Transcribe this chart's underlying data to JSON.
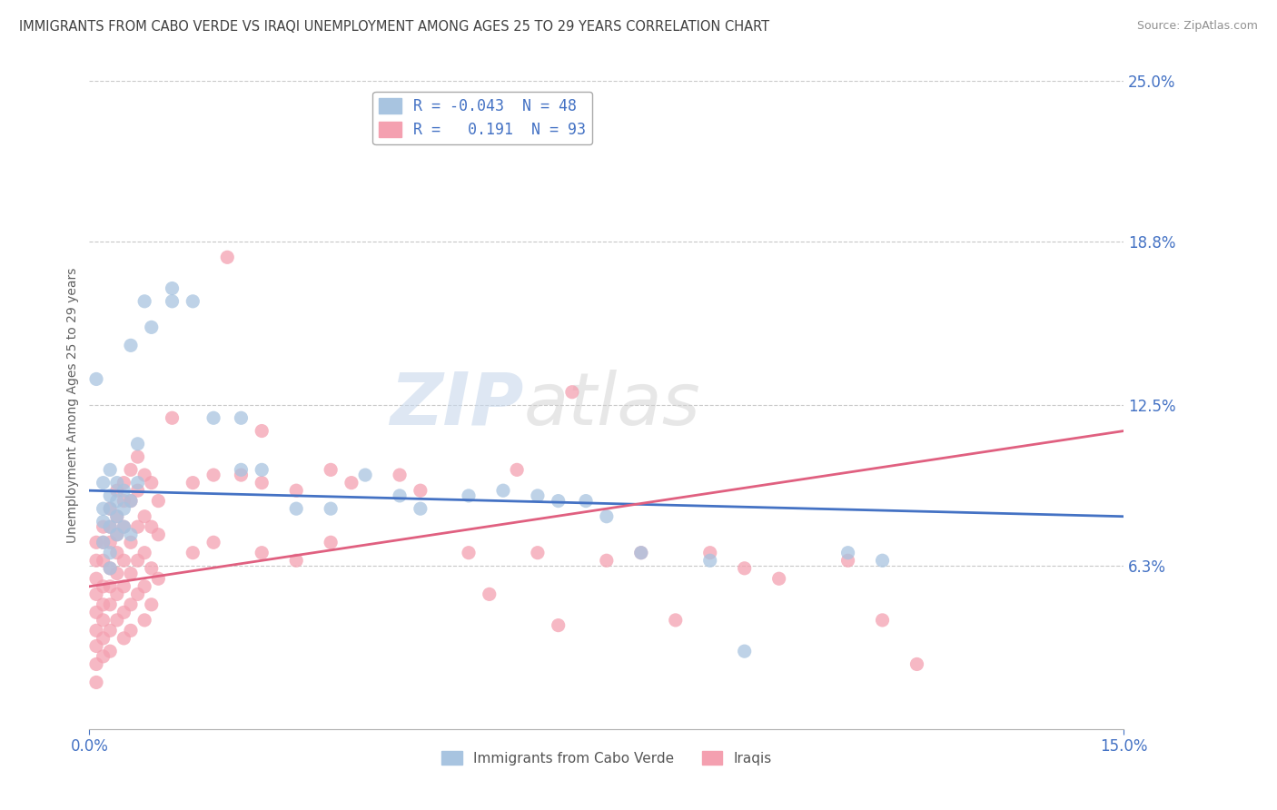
{
  "title": "IMMIGRANTS FROM CABO VERDE VS IRAQI UNEMPLOYMENT AMONG AGES 25 TO 29 YEARS CORRELATION CHART",
  "source": "Source: ZipAtlas.com",
  "ylabel": "Unemployment Among Ages 25 to 29 years",
  "xlim": [
    0.0,
    0.15
  ],
  "ylim": [
    0.0,
    0.25
  ],
  "yticks": [
    0.0,
    0.063,
    0.125,
    0.188,
    0.25
  ],
  "ytick_labels": [
    "",
    "6.3%",
    "12.5%",
    "18.8%",
    "25.0%"
  ],
  "xticks": [
    0.0,
    0.15
  ],
  "xtick_labels": [
    "0.0%",
    "15.0%"
  ],
  "cabo_verde_color": "#a8c4e0",
  "iraqi_color": "#f4a0b0",
  "cabo_verde_line_color": "#4472c4",
  "iraqi_line_color": "#e06080",
  "cabo_verde_r": -0.043,
  "iraqi_r": 0.191,
  "cabo_verde_line": [
    0.0,
    0.092,
    0.15,
    0.082
  ],
  "iraqi_line": [
    0.0,
    0.055,
    0.15,
    0.115
  ],
  "cabo_verde_scatter": [
    [
      0.001,
      0.135
    ],
    [
      0.002,
      0.095
    ],
    [
      0.002,
      0.085
    ],
    [
      0.002,
      0.08
    ],
    [
      0.002,
      0.072
    ],
    [
      0.003,
      0.1
    ],
    [
      0.003,
      0.09
    ],
    [
      0.003,
      0.085
    ],
    [
      0.003,
      0.078
    ],
    [
      0.003,
      0.068
    ],
    [
      0.003,
      0.062
    ],
    [
      0.004,
      0.095
    ],
    [
      0.004,
      0.088
    ],
    [
      0.004,
      0.082
    ],
    [
      0.004,
      0.075
    ],
    [
      0.005,
      0.092
    ],
    [
      0.005,
      0.085
    ],
    [
      0.005,
      0.078
    ],
    [
      0.006,
      0.148
    ],
    [
      0.006,
      0.088
    ],
    [
      0.006,
      0.075
    ],
    [
      0.007,
      0.11
    ],
    [
      0.007,
      0.095
    ],
    [
      0.008,
      0.165
    ],
    [
      0.009,
      0.155
    ],
    [
      0.012,
      0.17
    ],
    [
      0.012,
      0.165
    ],
    [
      0.015,
      0.165
    ],
    [
      0.018,
      0.12
    ],
    [
      0.022,
      0.12
    ],
    [
      0.022,
      0.1
    ],
    [
      0.025,
      0.1
    ],
    [
      0.03,
      0.085
    ],
    [
      0.035,
      0.085
    ],
    [
      0.04,
      0.098
    ],
    [
      0.045,
      0.09
    ],
    [
      0.048,
      0.085
    ],
    [
      0.055,
      0.09
    ],
    [
      0.06,
      0.092
    ],
    [
      0.065,
      0.09
    ],
    [
      0.068,
      0.088
    ],
    [
      0.072,
      0.088
    ],
    [
      0.075,
      0.082
    ],
    [
      0.08,
      0.068
    ],
    [
      0.09,
      0.065
    ],
    [
      0.095,
      0.03
    ],
    [
      0.11,
      0.068
    ],
    [
      0.115,
      0.065
    ]
  ],
  "iraqi_scatter": [
    [
      0.001,
      0.072
    ],
    [
      0.001,
      0.065
    ],
    [
      0.001,
      0.058
    ],
    [
      0.001,
      0.052
    ],
    [
      0.001,
      0.045
    ],
    [
      0.001,
      0.038
    ],
    [
      0.001,
      0.032
    ],
    [
      0.001,
      0.025
    ],
    [
      0.001,
      0.018
    ],
    [
      0.002,
      0.078
    ],
    [
      0.002,
      0.072
    ],
    [
      0.002,
      0.065
    ],
    [
      0.002,
      0.055
    ],
    [
      0.002,
      0.048
    ],
    [
      0.002,
      0.042
    ],
    [
      0.002,
      0.035
    ],
    [
      0.002,
      0.028
    ],
    [
      0.003,
      0.085
    ],
    [
      0.003,
      0.078
    ],
    [
      0.003,
      0.072
    ],
    [
      0.003,
      0.062
    ],
    [
      0.003,
      0.055
    ],
    [
      0.003,
      0.048
    ],
    [
      0.003,
      0.038
    ],
    [
      0.003,
      0.03
    ],
    [
      0.004,
      0.092
    ],
    [
      0.004,
      0.082
    ],
    [
      0.004,
      0.075
    ],
    [
      0.004,
      0.068
    ],
    [
      0.004,
      0.06
    ],
    [
      0.004,
      0.052
    ],
    [
      0.004,
      0.042
    ],
    [
      0.005,
      0.095
    ],
    [
      0.005,
      0.088
    ],
    [
      0.005,
      0.078
    ],
    [
      0.005,
      0.065
    ],
    [
      0.005,
      0.055
    ],
    [
      0.005,
      0.045
    ],
    [
      0.005,
      0.035
    ],
    [
      0.006,
      0.1
    ],
    [
      0.006,
      0.088
    ],
    [
      0.006,
      0.072
    ],
    [
      0.006,
      0.06
    ],
    [
      0.006,
      0.048
    ],
    [
      0.006,
      0.038
    ],
    [
      0.007,
      0.105
    ],
    [
      0.007,
      0.092
    ],
    [
      0.007,
      0.078
    ],
    [
      0.007,
      0.065
    ],
    [
      0.007,
      0.052
    ],
    [
      0.008,
      0.098
    ],
    [
      0.008,
      0.082
    ],
    [
      0.008,
      0.068
    ],
    [
      0.008,
      0.055
    ],
    [
      0.008,
      0.042
    ],
    [
      0.009,
      0.095
    ],
    [
      0.009,
      0.078
    ],
    [
      0.009,
      0.062
    ],
    [
      0.009,
      0.048
    ],
    [
      0.01,
      0.088
    ],
    [
      0.01,
      0.075
    ],
    [
      0.01,
      0.058
    ],
    [
      0.012,
      0.12
    ],
    [
      0.015,
      0.095
    ],
    [
      0.015,
      0.068
    ],
    [
      0.018,
      0.098
    ],
    [
      0.018,
      0.072
    ],
    [
      0.02,
      0.182
    ],
    [
      0.022,
      0.098
    ],
    [
      0.025,
      0.115
    ],
    [
      0.025,
      0.095
    ],
    [
      0.025,
      0.068
    ],
    [
      0.03,
      0.092
    ],
    [
      0.03,
      0.065
    ],
    [
      0.035,
      0.1
    ],
    [
      0.035,
      0.072
    ],
    [
      0.038,
      0.095
    ],
    [
      0.045,
      0.098
    ],
    [
      0.048,
      0.092
    ],
    [
      0.055,
      0.068
    ],
    [
      0.058,
      0.052
    ],
    [
      0.062,
      0.1
    ],
    [
      0.065,
      0.068
    ],
    [
      0.068,
      0.04
    ],
    [
      0.07,
      0.13
    ],
    [
      0.075,
      0.065
    ],
    [
      0.08,
      0.068
    ],
    [
      0.085,
      0.042
    ],
    [
      0.09,
      0.068
    ],
    [
      0.095,
      0.062
    ],
    [
      0.1,
      0.058
    ],
    [
      0.11,
      0.065
    ],
    [
      0.115,
      0.042
    ],
    [
      0.12,
      0.025
    ]
  ],
  "background_color": "#ffffff",
  "grid_color": "#c8c8c8",
  "title_color": "#404040",
  "axis_label_color": "#606060",
  "tick_color": "#4472c4"
}
